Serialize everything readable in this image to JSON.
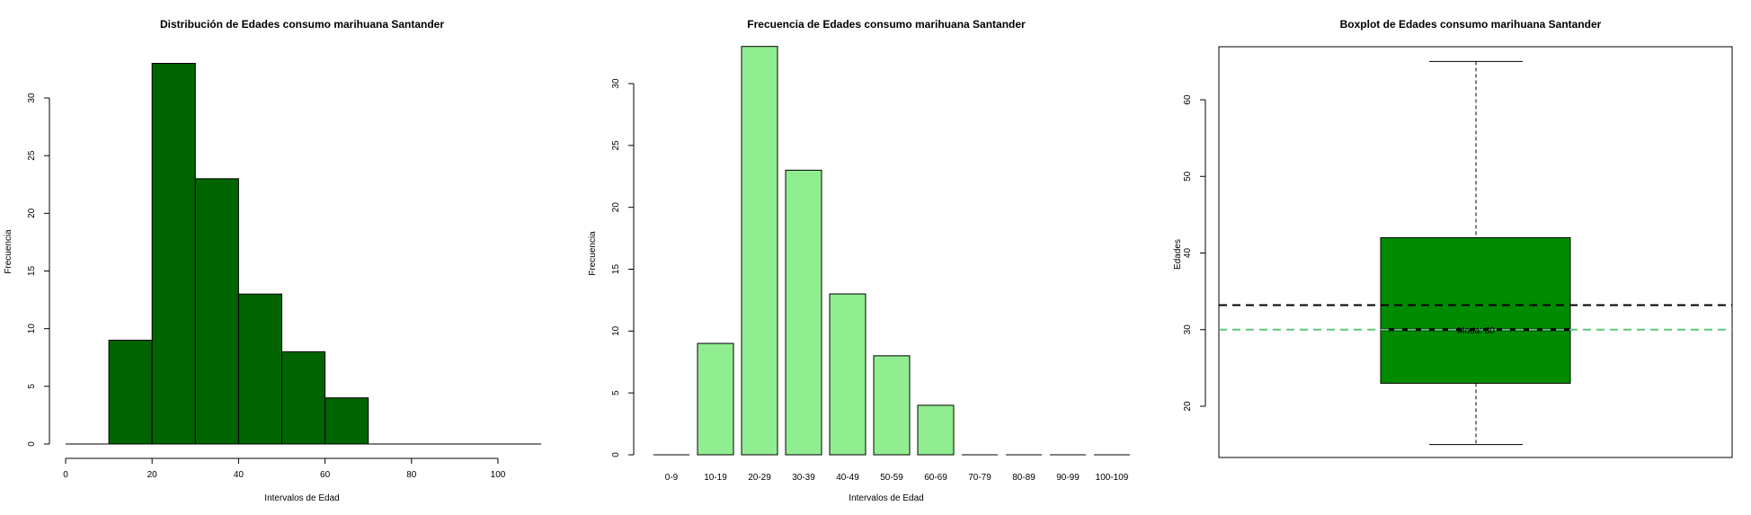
{
  "chart_data": [
    {
      "type": "bar",
      "title": "Distribución de Edades consumo marihuana Santander",
      "xlabel": "Intervalos de Edad",
      "ylabel": "Frecuencia",
      "bins": [
        [
          10,
          20
        ],
        [
          20,
          30
        ],
        [
          30,
          40
        ],
        [
          40,
          50
        ],
        [
          50,
          60
        ],
        [
          60,
          70
        ]
      ],
      "values": [
        9,
        33,
        23,
        13,
        8,
        4
      ],
      "xlim": [
        0,
        110
      ],
      "xticks": [
        0,
        20,
        40,
        60,
        80,
        100
      ],
      "ylim": [
        0,
        33
      ],
      "yticks": [
        0,
        5,
        10,
        15,
        20,
        25,
        30
      ],
      "color": "#006400"
    },
    {
      "type": "bar",
      "title": "Frecuencia de Edades consumo marihuana Santander",
      "xlabel": "Intervalos de Edad",
      "ylabel": "Frecuencia",
      "categories": [
        "0-9",
        "10-19",
        "20-29",
        "30-39",
        "40-49",
        "50-59",
        "60-69",
        "70-79",
        "80-89",
        "90-99",
        "100-109"
      ],
      "values": [
        0,
        9,
        33,
        23,
        13,
        8,
        4,
        0,
        0,
        0,
        0
      ],
      "ylim": [
        0,
        33
      ],
      "yticks": [
        0,
        5,
        10,
        15,
        20,
        25,
        30
      ],
      "color": "#90EE90"
    },
    {
      "type": "box",
      "title": "Boxplot de Edades consumo marihuana Santander",
      "ylabel": "Edades",
      "min": 15,
      "q1": 23,
      "median": 30,
      "q3": 42,
      "max": 65,
      "mean_line": 33.2,
      "mode_line": 30,
      "mode_label": "Moda: 30",
      "ylim": [
        13,
        68
      ],
      "yticks": [
        20,
        30,
        40,
        50,
        60
      ],
      "box_color": "#008B00",
      "mode_color": "#5ec77a"
    }
  ]
}
